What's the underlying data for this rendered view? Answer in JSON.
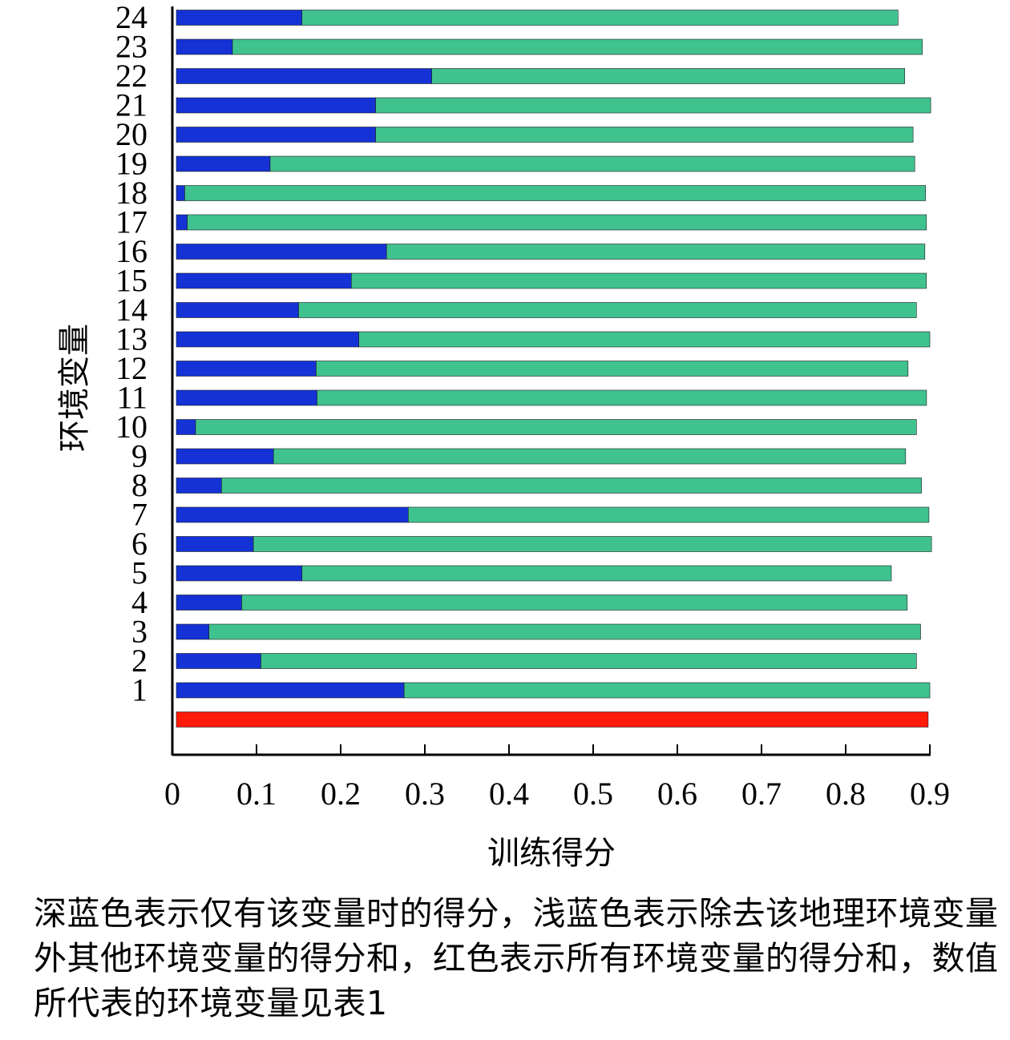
{
  "chart_data": {
    "type": "bar",
    "orientation": "horizontal",
    "stacked": true,
    "xlabel": "训练得分",
    "ylabel": "环境变量",
    "xlim": [
      0,
      0.9
    ],
    "xticks": [
      "0",
      "0.1",
      "0.2",
      "0.3",
      "0.4",
      "0.5",
      "0.6",
      "0.7",
      "0.8",
      "0.9"
    ],
    "categories": [
      "",
      "1",
      "2",
      "3",
      "4",
      "5",
      "6",
      "7",
      "8",
      "9",
      "10",
      "11",
      "12",
      "13",
      "14",
      "15",
      "16",
      "17",
      "18",
      "19",
      "20",
      "21",
      "22",
      "23",
      "24"
    ],
    "series": [
      {
        "color": "#1432d6",
        "values": [
          0,
          0.272,
          0.101,
          0.039,
          0.078,
          0.15,
          0.092,
          0.277,
          0.054,
          0.116,
          0.023,
          0.168,
          0.167,
          0.218,
          0.146,
          0.209,
          0.251,
          0.013,
          0.01,
          0.112,
          0.238,
          0.238,
          0.305,
          0.067,
          0.15
        ]
      },
      {
        "color": "#40c28f",
        "values": [
          0,
          0.628,
          0.783,
          0.85,
          0.795,
          0.704,
          0.81,
          0.622,
          0.836,
          0.755,
          0.861,
          0.728,
          0.707,
          0.682,
          0.738,
          0.687,
          0.643,
          0.883,
          0.885,
          0.77,
          0.642,
          0.663,
          0.565,
          0.824,
          0.712
        ]
      },
      {
        "color": "#ff1a0a",
        "values": [
          0.898,
          0,
          0,
          0,
          0,
          0,
          0,
          0,
          0,
          0,
          0,
          0,
          0,
          0,
          0,
          0,
          0,
          0,
          0,
          0,
          0,
          0,
          0,
          0,
          0
        ]
      }
    ]
  },
  "caption": "深蓝色表示仅有该变量时的得分，浅蓝色表示除去该地理环境变量外其他环境变量的得分和，红色表示所有环境变量的得分和，数值所代表的环境变量见表1"
}
